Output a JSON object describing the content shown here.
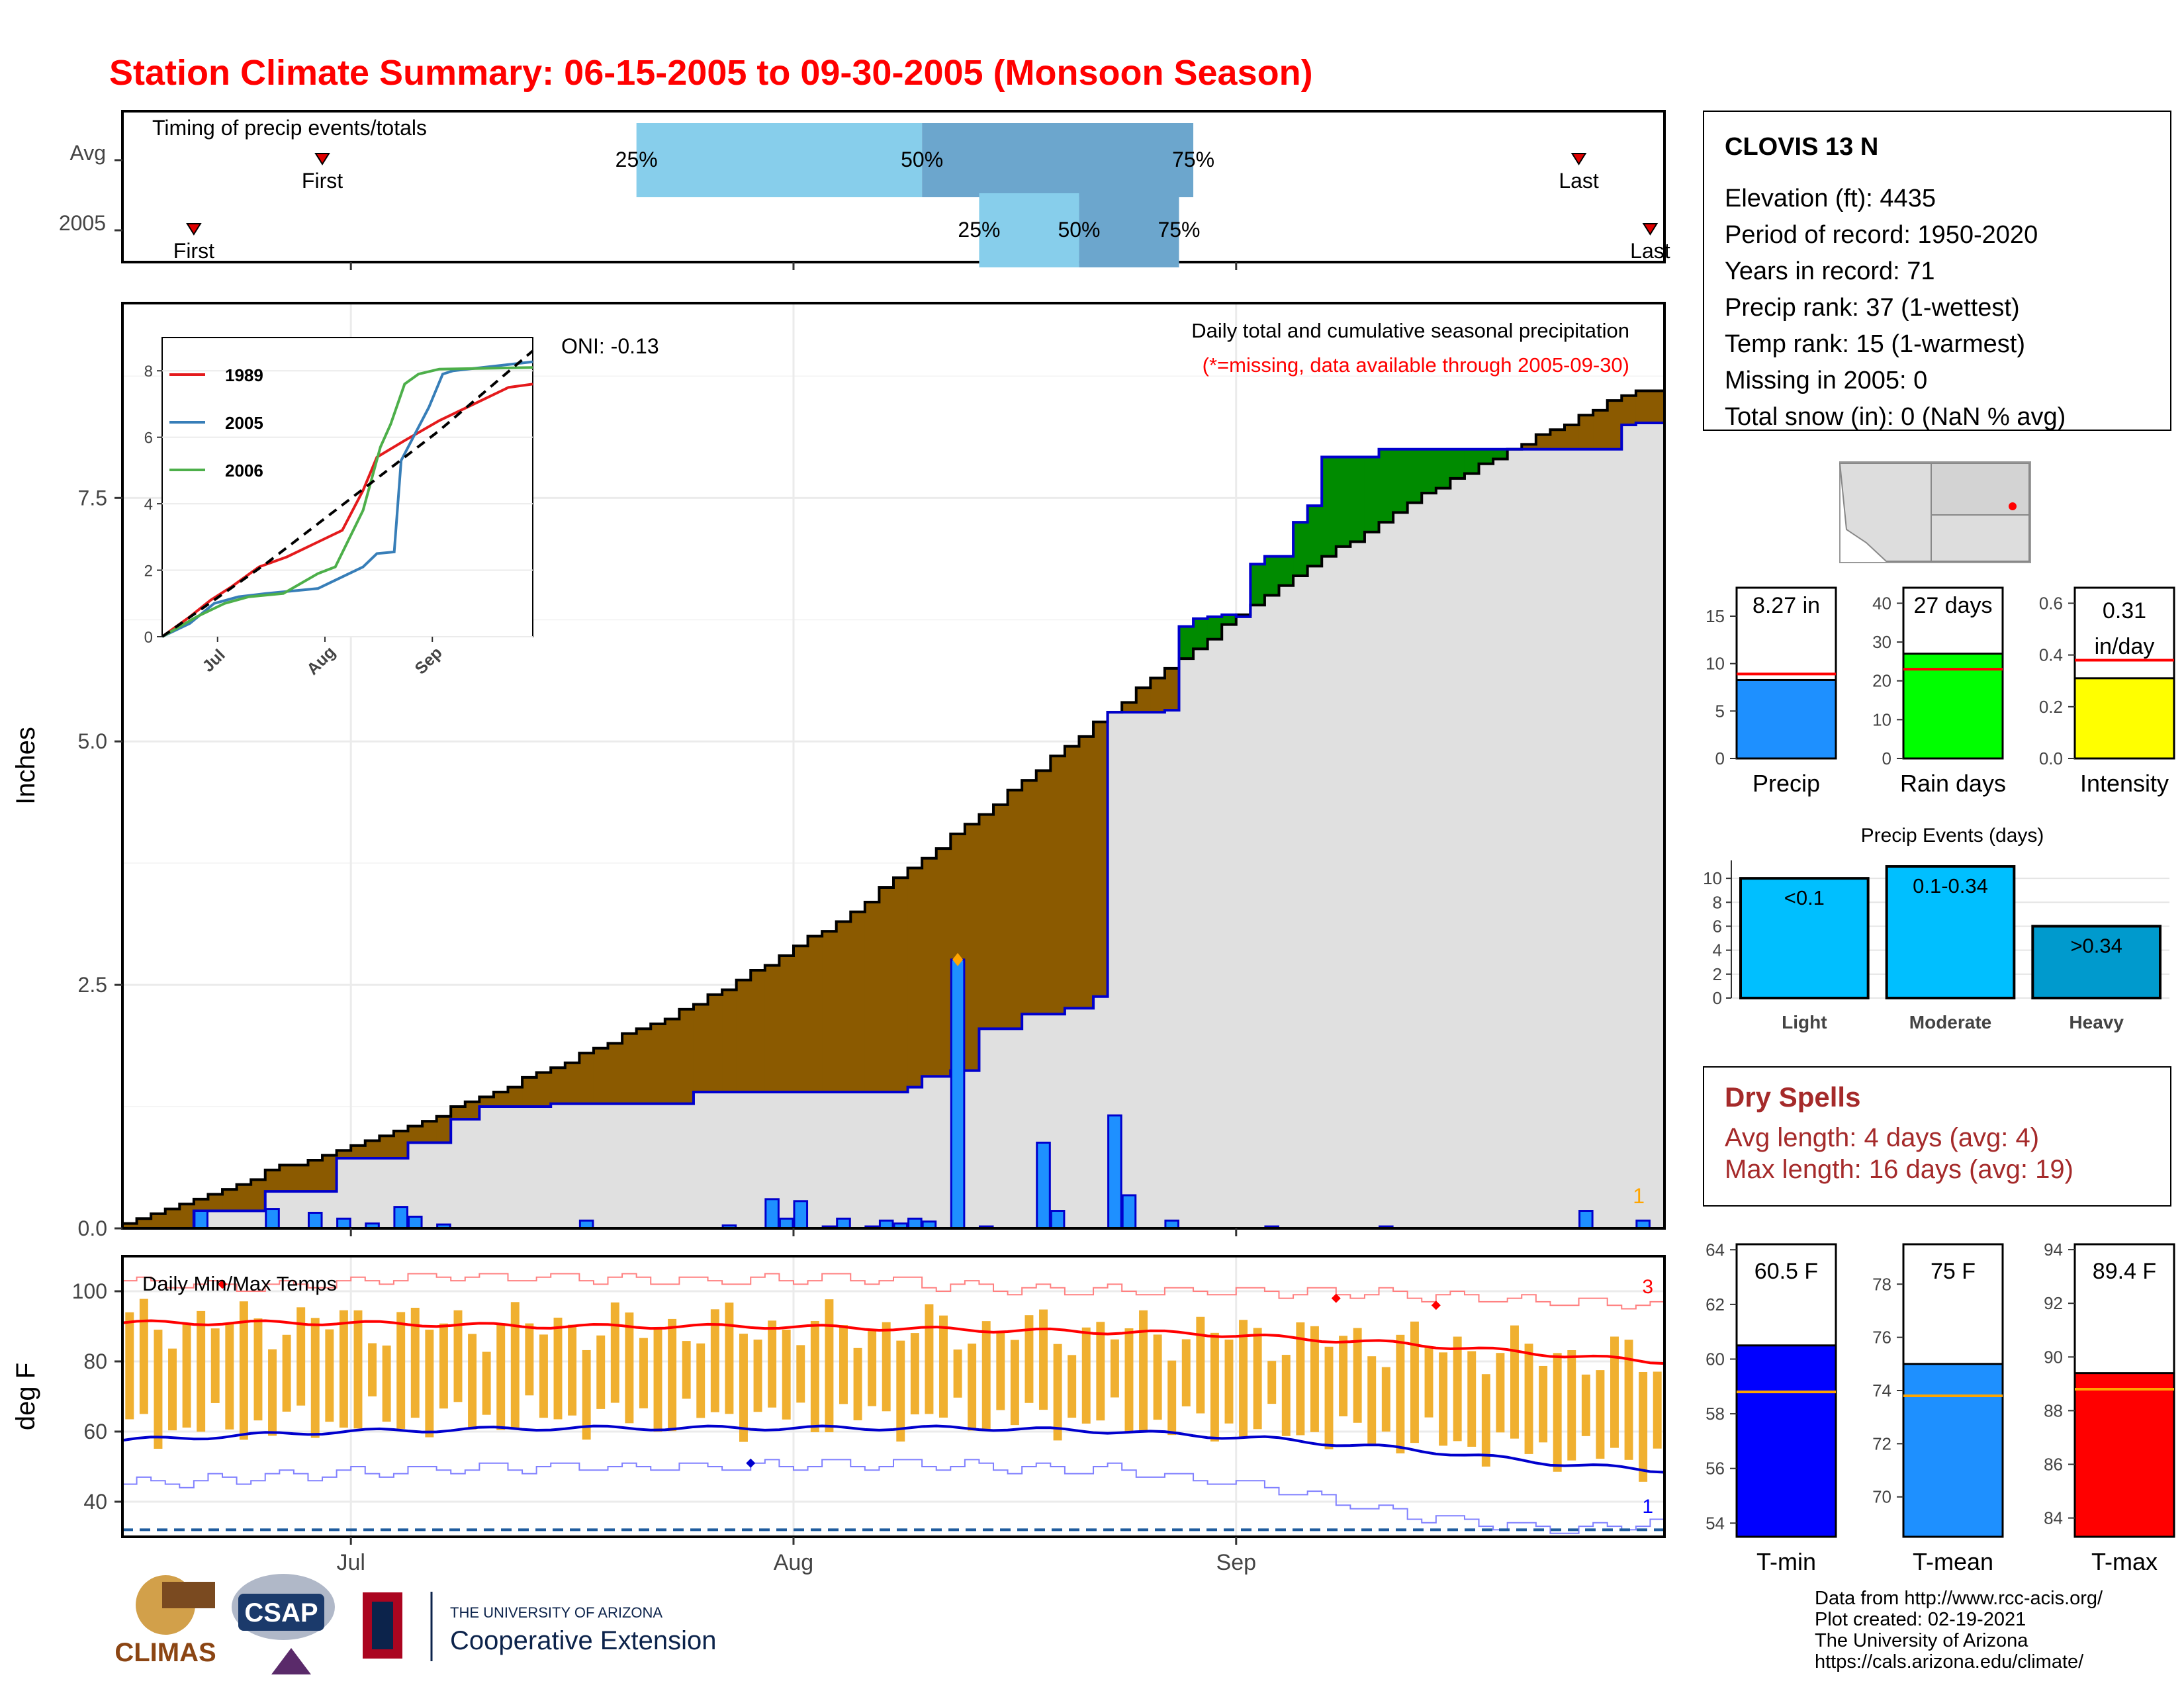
{
  "title": "Station Climate Summary: 06-15-2005 to 09-30-2005 (Monsoon Season)",
  "timing": {
    "label": "Timing of precip events/totals",
    "rows": [
      "Avg",
      "2005"
    ],
    "avg": {
      "first_date": "2005-06-29",
      "last_date": "2005-09-25",
      "p25_date": "2005-07-21",
      "p50_date": "2005-08-10",
      "p75_date": "2005-08-29"
    },
    "y2005": {
      "first_date": "2005-06-20",
      "last_date": "2005-09-30",
      "p25_date": "2005-08-14",
      "p50_date": "2005-08-21",
      "p75_date": "2005-08-28"
    },
    "first_label": "First",
    "last_label": "Last",
    "p25": "25%",
    "p50": "50%",
    "p75": "75%"
  },
  "precip_panel": {
    "ylabel": "Inches",
    "title_line1": "Daily total and cumulative seasonal precipitation",
    "title_line2": "(*=missing, data available through 2005-09-30)",
    "oni": "ONI: -0.13",
    "corner_count": "1",
    "yticks": [
      "0.0",
      "2.5",
      "5.0",
      "7.5"
    ],
    "colors": {
      "avg_fill": "#8B5A00",
      "surplus_fill": "#008B00",
      "cum_fill": "#E0E0E0",
      "bar": "#1E90FF",
      "edge": "#0000CD"
    }
  },
  "inset": {
    "yticks": [
      "0",
      "2",
      "4",
      "6",
      "8"
    ],
    "xticks": [
      "Jul",
      "Aug",
      "Sep"
    ],
    "legend": [
      {
        "name": "1989",
        "color": "#E41A1C"
      },
      {
        "name": "2005",
        "color": "#377EB8"
      },
      {
        "name": "2006",
        "color": "#4DAF4A"
      }
    ]
  },
  "temp_panel": {
    "title": "Daily Min/Max Temps",
    "ylabel": "deg F",
    "yticks": [
      "40",
      "60",
      "80",
      "100"
    ],
    "count_top": "3",
    "count_bottom": "1"
  },
  "xaxis": {
    "ticks": [
      "Jul",
      "Aug",
      "Sep"
    ]
  },
  "station": {
    "name": "CLOVIS 13 N",
    "lines": [
      "Elevation (ft): 4435",
      "Period of record: 1950-2020",
      "Years in record: 71",
      "Precip rank: 37 (1-wettest)",
      "Temp rank: 15 (1-warmest)",
      "Missing in 2005: 0",
      "Total snow (in): 0 (NaN % avg)"
    ]
  },
  "mini_bars": [
    {
      "label": "Precip",
      "value_text": "8.27 in",
      "value": 8.27,
      "avg": 8.9,
      "ymax": 18,
      "yticks": [
        "0",
        "5",
        "10",
        "15"
      ],
      "tick_vals": [
        0,
        5,
        10,
        15
      ],
      "color": "#1E90FF",
      "avg_color": "#FF0000"
    },
    {
      "label": "Rain days",
      "value_text": "27 days",
      "value": 27,
      "avg": 23,
      "ymax": 44,
      "yticks": [
        "0",
        "10",
        "20",
        "30",
        "40"
      ],
      "tick_vals": [
        0,
        10,
        20,
        30,
        40
      ],
      "color": "#00FF00",
      "avg_color": "#FF0000"
    },
    {
      "label": "Intensity",
      "value_text": "0.31\nin/day",
      "value": 0.31,
      "avg": 0.38,
      "ymax": 0.66,
      "yticks": [
        "0.0",
        "0.2",
        "0.4",
        "0.6"
      ],
      "tick_vals": [
        0,
        0.2,
        0.4,
        0.6
      ],
      "color": "#FFFF00",
      "avg_color": "#FF0000"
    }
  ],
  "events": {
    "title": "Precip Events (days)",
    "yticks": [
      "0",
      "2",
      "4",
      "6",
      "8",
      "10"
    ],
    "bars": [
      {
        "cat": "Light",
        "label": "<0.1",
        "value": 10,
        "color": "#00BFFF"
      },
      {
        "cat": "Moderate",
        "label": "0.1-0.34",
        "value": 11,
        "color": "#00BFFF"
      },
      {
        "cat": "Heavy",
        "label": ">0.34",
        "value": 6,
        "color": "#009ACD"
      }
    ]
  },
  "dry_spells": {
    "title": "Dry Spells",
    "avg_line": "Avg length: 4 days (avg: 4)",
    "max_line": "Max length: 16 days (avg: 19)"
  },
  "temp_bars": [
    {
      "label": "T-min",
      "value_text": "60.5 F",
      "value": 60.5,
      "avg": 58.8,
      "ymin": 53.5,
      "ymax": 64.2,
      "yticks": [
        "54",
        "56",
        "58",
        "60",
        "62",
        "64"
      ],
      "tick_vals": [
        54,
        56,
        58,
        60,
        62,
        64
      ],
      "color": "#0000FF"
    },
    {
      "label": "T-mean",
      "value_text": "75 F",
      "value": 75,
      "avg": 73.8,
      "ymin": 68.5,
      "ymax": 79.5,
      "yticks": [
        "70",
        "72",
        "74",
        "76",
        "78"
      ],
      "tick_vals": [
        70,
        72,
        74,
        76,
        78
      ],
      "color": "#1E90FF"
    },
    {
      "label": "T-max",
      "value_text": "89.4 F",
      "value": 89.4,
      "avg": 88.8,
      "ymin": 83.3,
      "ymax": 94.2,
      "yticks": [
        "84",
        "86",
        "88",
        "90",
        "92",
        "94"
      ],
      "tick_vals": [
        84,
        86,
        88,
        90,
        92,
        94
      ],
      "color": "#FF0000"
    }
  ],
  "footer": {
    "lines": [
      "Data from http://www.rcc-acis.org/",
      "Plot created: 02-19-2021",
      "The University of Arizona",
      "https://cals.arizona.edu/climate/"
    ],
    "logos": {
      "climas": "CLIMAS",
      "csap": "CSAP",
      "ua_small": "THE UNIVERSITY OF ARIZONA",
      "ua_big": "Cooperative Extension"
    }
  },
  "chart_data": {
    "type": "area",
    "xlabel": "",
    "ylabel": "Inches",
    "x_range": [
      "2005-06-15",
      "2005-09-30"
    ],
    "cum_2005": [
      [
        0,
        0
      ],
      [
        5,
        0.18
      ],
      [
        10,
        0.38
      ],
      [
        15,
        0.72
      ],
      [
        20,
        0.88
      ],
      [
        23,
        1.12
      ],
      [
        25,
        1.25
      ],
      [
        30,
        1.28
      ],
      [
        40,
        1.4
      ],
      [
        52,
        1.4
      ],
      [
        55,
        1.45
      ],
      [
        56,
        1.56
      ],
      [
        58,
        1.62
      ],
      [
        60,
        2.05
      ],
      [
        63,
        2.2
      ],
      [
        66,
        2.26
      ],
      [
        68,
        2.38
      ],
      [
        69,
        5.3
      ],
      [
        73,
        5.32
      ],
      [
        74,
        6.18
      ],
      [
        75,
        6.26
      ],
      [
        76,
        6.28
      ],
      [
        77,
        6.3
      ],
      [
        78,
        6.28
      ],
      [
        79,
        6.82
      ],
      [
        80,
        6.9
      ],
      [
        82,
        7.25
      ],
      [
        83,
        7.42
      ],
      [
        84,
        7.92
      ],
      [
        88,
        8.0
      ],
      [
        105,
        8.25
      ],
      [
        106,
        8.27
      ]
    ],
    "cum_avg": [
      [
        0,
        0.03
      ],
      [
        10,
        0.58
      ],
      [
        20,
        1.05
      ],
      [
        30,
        1.65
      ],
      [
        40,
        2.3
      ],
      [
        50,
        3.15
      ],
      [
        60,
        4.25
      ],
      [
        70,
        5.42
      ],
      [
        80,
        6.5
      ],
      [
        90,
        7.45
      ],
      [
        100,
        8.2
      ],
      [
        106,
        8.62
      ]
    ],
    "daily_nonzero": [
      [
        5,
        0.18
      ],
      [
        10,
        0.2
      ],
      [
        13,
        0.16
      ],
      [
        15,
        0.1
      ],
      [
        17,
        0.05
      ],
      [
        19,
        0.22
      ],
      [
        20,
        0.12
      ],
      [
        22,
        0.04
      ],
      [
        32,
        0.08
      ],
      [
        42,
        0.03
      ],
      [
        45,
        0.3
      ],
      [
        46,
        0.1
      ],
      [
        47,
        0.28
      ],
      [
        49,
        0.02
      ],
      [
        50,
        0.1
      ],
      [
        52,
        0.02
      ],
      [
        53,
        0.08
      ],
      [
        54,
        0.05
      ],
      [
        55,
        0.1
      ],
      [
        56,
        0.07
      ],
      [
        58,
        2.76
      ],
      [
        60,
        0.02
      ],
      [
        64,
        0.88
      ],
      [
        65,
        0.18
      ],
      [
        69,
        1.16
      ],
      [
        70,
        0.34
      ],
      [
        73,
        0.08
      ],
      [
        80,
        0.02
      ],
      [
        88,
        0.02
      ],
      [
        102,
        0.18
      ],
      [
        106,
        0.08
      ]
    ],
    "inset": {
      "xlabel": "",
      "ylabel": "",
      "ylim": [
        0,
        9
      ],
      "series": [
        {
          "name": "1989",
          "points": [
            [
              0,
              0
            ],
            [
              8,
              0.6
            ],
            [
              14,
              1.1
            ],
            [
              20,
              1.5
            ],
            [
              28,
              2.1
            ],
            [
              36,
              2.4
            ],
            [
              45,
              2.85
            ],
            [
              52,
              3.2
            ],
            [
              58,
              4.4
            ],
            [
              62,
              5.4
            ],
            [
              70,
              5.9
            ],
            [
              80,
              6.5
            ],
            [
              94,
              7.2
            ],
            [
              100,
              7.5
            ],
            [
              107,
              7.6
            ]
          ]
        },
        {
          "name": "2005",
          "points": [
            [
              0,
              0
            ],
            [
              8,
              0.4
            ],
            [
              15,
              1.0
            ],
            [
              22,
              1.2
            ],
            [
              30,
              1.3
            ],
            [
              45,
              1.45
            ],
            [
              58,
              2.1
            ],
            [
              62,
              2.5
            ],
            [
              67,
              2.55
            ],
            [
              69,
              5.3
            ],
            [
              74,
              6.3
            ],
            [
              77,
              6.9
            ],
            [
              79,
              7.4
            ],
            [
              81,
              7.9
            ],
            [
              84,
              8.0
            ],
            [
              107,
              8.27
            ]
          ]
        },
        {
          "name": "2006",
          "points": [
            [
              0,
              0
            ],
            [
              10,
              0.6
            ],
            [
              18,
              1.0
            ],
            [
              25,
              1.2
            ],
            [
              35,
              1.3
            ],
            [
              45,
              1.9
            ],
            [
              50,
              2.1
            ],
            [
              58,
              3.8
            ],
            [
              63,
              5.7
            ],
            [
              66,
              6.4
            ],
            [
              68,
              7.0
            ],
            [
              70,
              7.6
            ],
            [
              74,
              7.9
            ],
            [
              80,
              8.05
            ],
            [
              107,
              8.1
            ]
          ]
        }
      ],
      "avg_dashed": [
        [
          0,
          0
        ],
        [
          30,
          2.2
        ],
        [
          60,
          4.6
        ],
        [
          80,
          6.2
        ],
        [
          107,
          8.6
        ]
      ]
    },
    "temperature": {
      "ylim": [
        30,
        110
      ],
      "avg_max": [
        [
          0,
          91
        ],
        [
          15,
          91
        ],
        [
          30,
          90
        ],
        [
          45,
          90
        ],
        [
          60,
          89
        ],
        [
          75,
          88
        ],
        [
          90,
          85
        ],
        [
          100,
          82
        ],
        [
          107,
          80
        ]
      ],
      "avg_min": [
        [
          0,
          57.5
        ],
        [
          15,
          60
        ],
        [
          30,
          61
        ],
        [
          45,
          61
        ],
        [
          60,
          61
        ],
        [
          70,
          60
        ],
        [
          80,
          58
        ],
        [
          90,
          55
        ],
        [
          100,
          51
        ],
        [
          107,
          49
        ]
      ],
      "record_high": [
        [
          0,
          103
        ],
        [
          10,
          101
        ],
        [
          20,
          104
        ],
        [
          30,
          104
        ],
        [
          40,
          103
        ],
        [
          50,
          104
        ],
        [
          60,
          101
        ],
        [
          70,
          100
        ],
        [
          80,
          100
        ],
        [
          90,
          99
        ],
        [
          100,
          97
        ],
        [
          107,
          96
        ]
      ],
      "record_low": [
        [
          0,
          45
        ],
        [
          10,
          47
        ],
        [
          20,
          49
        ],
        [
          30,
          50
        ],
        [
          40,
          50
        ],
        [
          50,
          51
        ],
        [
          60,
          50
        ],
        [
          70,
          49
        ],
        [
          80,
          44
        ],
        [
          85,
          40
        ],
        [
          90,
          36
        ],
        [
          95,
          34
        ],
        [
          100,
          32
        ],
        [
          107,
          34
        ]
      ],
      "freeze": 32,
      "daily_range_example": {
        "max_mean": 91,
        "min_mean": 64
      }
    }
  }
}
